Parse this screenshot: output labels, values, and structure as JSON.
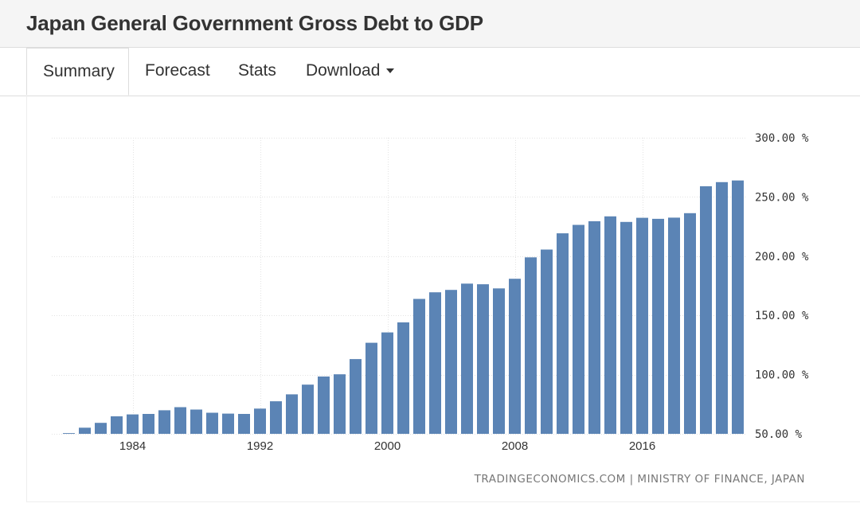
{
  "header": {
    "title": "Japan General Government Gross Debt to GDP"
  },
  "tabs": [
    {
      "label": "Summary",
      "active": true
    },
    {
      "label": "Forecast",
      "active": false
    },
    {
      "label": "Stats",
      "active": false
    },
    {
      "label": "Download",
      "active": false
    }
  ],
  "credit": "TRADINGECONOMICS.COM | MINISTRY OF FINANCE, JAPAN",
  "colors": {
    "bar": "#5b84b5",
    "grid": "#e3e3e3"
  },
  "chart_data": {
    "type": "bar",
    "title": "Japan General Government Gross Debt to GDP",
    "xlabel": "",
    "ylabel": "",
    "unit": "%",
    "ylim": [
      50,
      300
    ],
    "yticks": [
      300,
      250,
      200,
      150,
      100,
      50
    ],
    "ytick_labels": [
      "300.00 %",
      "250.00 %",
      "200.00 %",
      "150.00 %",
      "100.00 %",
      "50.00 %"
    ],
    "xticks": [
      1984,
      1992,
      2000,
      2008,
      2016
    ],
    "xtick_labels": [
      "1984",
      "1992",
      "2000",
      "2008",
      "2016"
    ],
    "grid": true,
    "x": [
      1980,
      1981,
      1982,
      1983,
      1984,
      1985,
      1986,
      1987,
      1988,
      1989,
      1990,
      1991,
      1992,
      1993,
      1994,
      1995,
      1996,
      1997,
      1998,
      1999,
      2000,
      2001,
      2002,
      2003,
      2004,
      2005,
      2006,
      2007,
      2008,
      2009,
      2010,
      2011,
      2012,
      2013,
      2014,
      2015,
      2016,
      2017,
      2018,
      2019,
      2020,
      2021,
      2022
    ],
    "values": [
      50.6,
      55.2,
      59.3,
      64.8,
      66.4,
      66.8,
      69.9,
      72.5,
      70.5,
      67.8,
      67.1,
      66.8,
      71.3,
      77.5,
      83.3,
      91.5,
      98.4,
      100.3,
      113.1,
      126.9,
      135.6,
      144.1,
      163.9,
      169.5,
      171.5,
      176.8,
      176.3,
      172.8,
      180.9,
      199.0,
      205.6,
      219.3,
      226.4,
      229.5,
      233.6,
      228.9,
      232.4,
      231.5,
      232.5,
      236.3,
      259.0,
      262.5,
      263.9
    ]
  }
}
